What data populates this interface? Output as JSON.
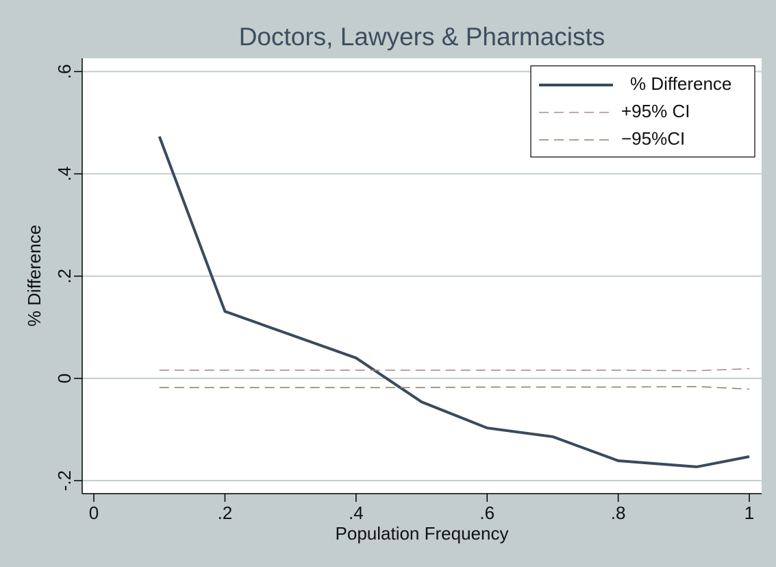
{
  "chart_data": {
    "type": "line",
    "title": "Doctors, Lawyers & Pharmacists",
    "x_label": "Population Frequency",
    "y_label": "% Difference",
    "x": [
      0.1,
      0.2,
      0.4,
      0.5,
      0.6,
      0.7,
      0.8,
      0.92,
      1.0
    ],
    "series": [
      {
        "name": "% Difference",
        "color": "#3b4a5c",
        "dashed": false,
        "values": [
          0.473,
          0.131,
          0.04,
          -0.046,
          -0.097,
          -0.114,
          -0.161,
          -0.173,
          -0.153
        ]
      },
      {
        "name": "+95% CI",
        "color": "#a68f8f",
        "dashed": true,
        "values": [
          0.016,
          0.016,
          0.016,
          0.016,
          0.016,
          0.016,
          0.016,
          0.015,
          0.019
        ]
      },
      {
        "name": "−95%CI",
        "color": "#8c8470",
        "dashed": true,
        "values": [
          -0.018,
          -0.018,
          -0.018,
          -0.018,
          -0.017,
          -0.017,
          -0.017,
          -0.016,
          -0.021
        ]
      }
    ],
    "xlim": [
      -0.0178,
      1.0188
    ],
    "ylim": [
      -0.2254,
      0.626
    ],
    "xticks": [
      0,
      {
        "value": 0.2,
        "label": ".2"
      },
      {
        "value": 0.4,
        "label": ".4"
      },
      {
        "value": 0.6,
        "label": ".6"
      },
      {
        "value": 0.8,
        "label": ".8"
      },
      1
    ],
    "yticks": [
      {
        "value": -0.2,
        "label": "-.2"
      },
      0,
      {
        "value": 0.2,
        "label": ".2"
      },
      {
        "value": 0.4,
        "label": ".4"
      },
      {
        "value": 0.6,
        "label": ".6"
      }
    ],
    "grid": true,
    "legend": "top-right"
  }
}
